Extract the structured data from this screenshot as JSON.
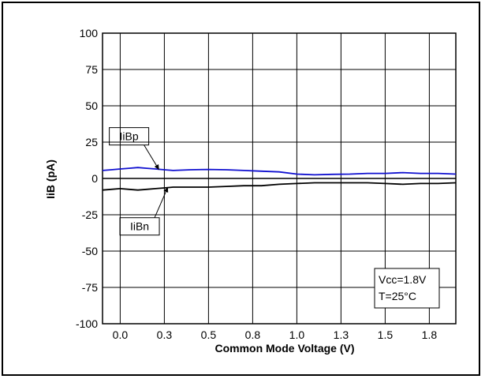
{
  "chart_data": {
    "type": "line",
    "title": "",
    "xlabel": "Common Mode Voltage (V)",
    "ylabel": "IiB (pA)",
    "xlim": [
      -0.1,
      1.9
    ],
    "ylim": [
      -100,
      100
    ],
    "x_ticks": [
      0.0,
      0.25,
      0.5,
      0.75,
      1.0,
      1.25,
      1.5,
      1.75
    ],
    "x_tick_labels": [
      "0.0",
      "0.3",
      "0.5",
      "0.8",
      "1.0",
      "1.3",
      "1.5",
      "1.8"
    ],
    "y_ticks": [
      100,
      75,
      50,
      25,
      0,
      -25,
      -50,
      -75,
      -100
    ],
    "y_tick_labels": [
      "100",
      "75",
      "50",
      "25",
      "0",
      "-25",
      "-50",
      "-75",
      "-100"
    ],
    "grid": true,
    "series": [
      {
        "name": "IiBp",
        "color": "#1010d0",
        "x": [
          -0.1,
          -0.05,
          0.0,
          0.05,
          0.1,
          0.15,
          0.2,
          0.25,
          0.3,
          0.4,
          0.5,
          0.6,
          0.7,
          0.8,
          0.9,
          1.0,
          1.1,
          1.2,
          1.3,
          1.4,
          1.5,
          1.6,
          1.7,
          1.8,
          1.9
        ],
        "values": [
          5.5,
          6.0,
          6.5,
          7.0,
          7.5,
          7.0,
          6.5,
          6.0,
          5.5,
          6.0,
          6.2,
          6.0,
          5.5,
          5.0,
          4.5,
          3.0,
          2.5,
          2.8,
          3.0,
          3.5,
          3.5,
          4.0,
          3.5,
          3.5,
          3.0
        ]
      },
      {
        "name": "IiBn",
        "color": "#000000",
        "x": [
          -0.1,
          -0.05,
          0.0,
          0.05,
          0.1,
          0.15,
          0.2,
          0.25,
          0.3,
          0.4,
          0.5,
          0.6,
          0.7,
          0.8,
          0.9,
          1.0,
          1.1,
          1.2,
          1.3,
          1.4,
          1.5,
          1.6,
          1.7,
          1.8,
          1.9
        ],
        "values": [
          -8.0,
          -7.5,
          -7.0,
          -7.5,
          -8.0,
          -7.5,
          -7.0,
          -6.5,
          -6.0,
          -6.0,
          -6.0,
          -5.5,
          -5.0,
          -5.0,
          -4.0,
          -3.5,
          -3.0,
          -3.0,
          -3.0,
          -3.0,
          -3.5,
          -4.0,
          -3.5,
          -3.5,
          -3.0
        ]
      }
    ],
    "annotations": {
      "series_labels": [
        {
          "text": "IiBp",
          "points_to": {
            "x": 0.22,
            "y": 6.0
          },
          "label_at": {
            "x": 0.05,
            "y": 29.0
          }
        },
        {
          "text": "IiBn",
          "points_to": {
            "x": 0.27,
            "y": -6.0
          },
          "label_at": {
            "x": 0.11,
            "y": -33.0
          }
        }
      ],
      "conditions": [
        "Vcc=1.8V",
        "T=25°C"
      ],
      "conditions_position": "bottom-right"
    }
  }
}
